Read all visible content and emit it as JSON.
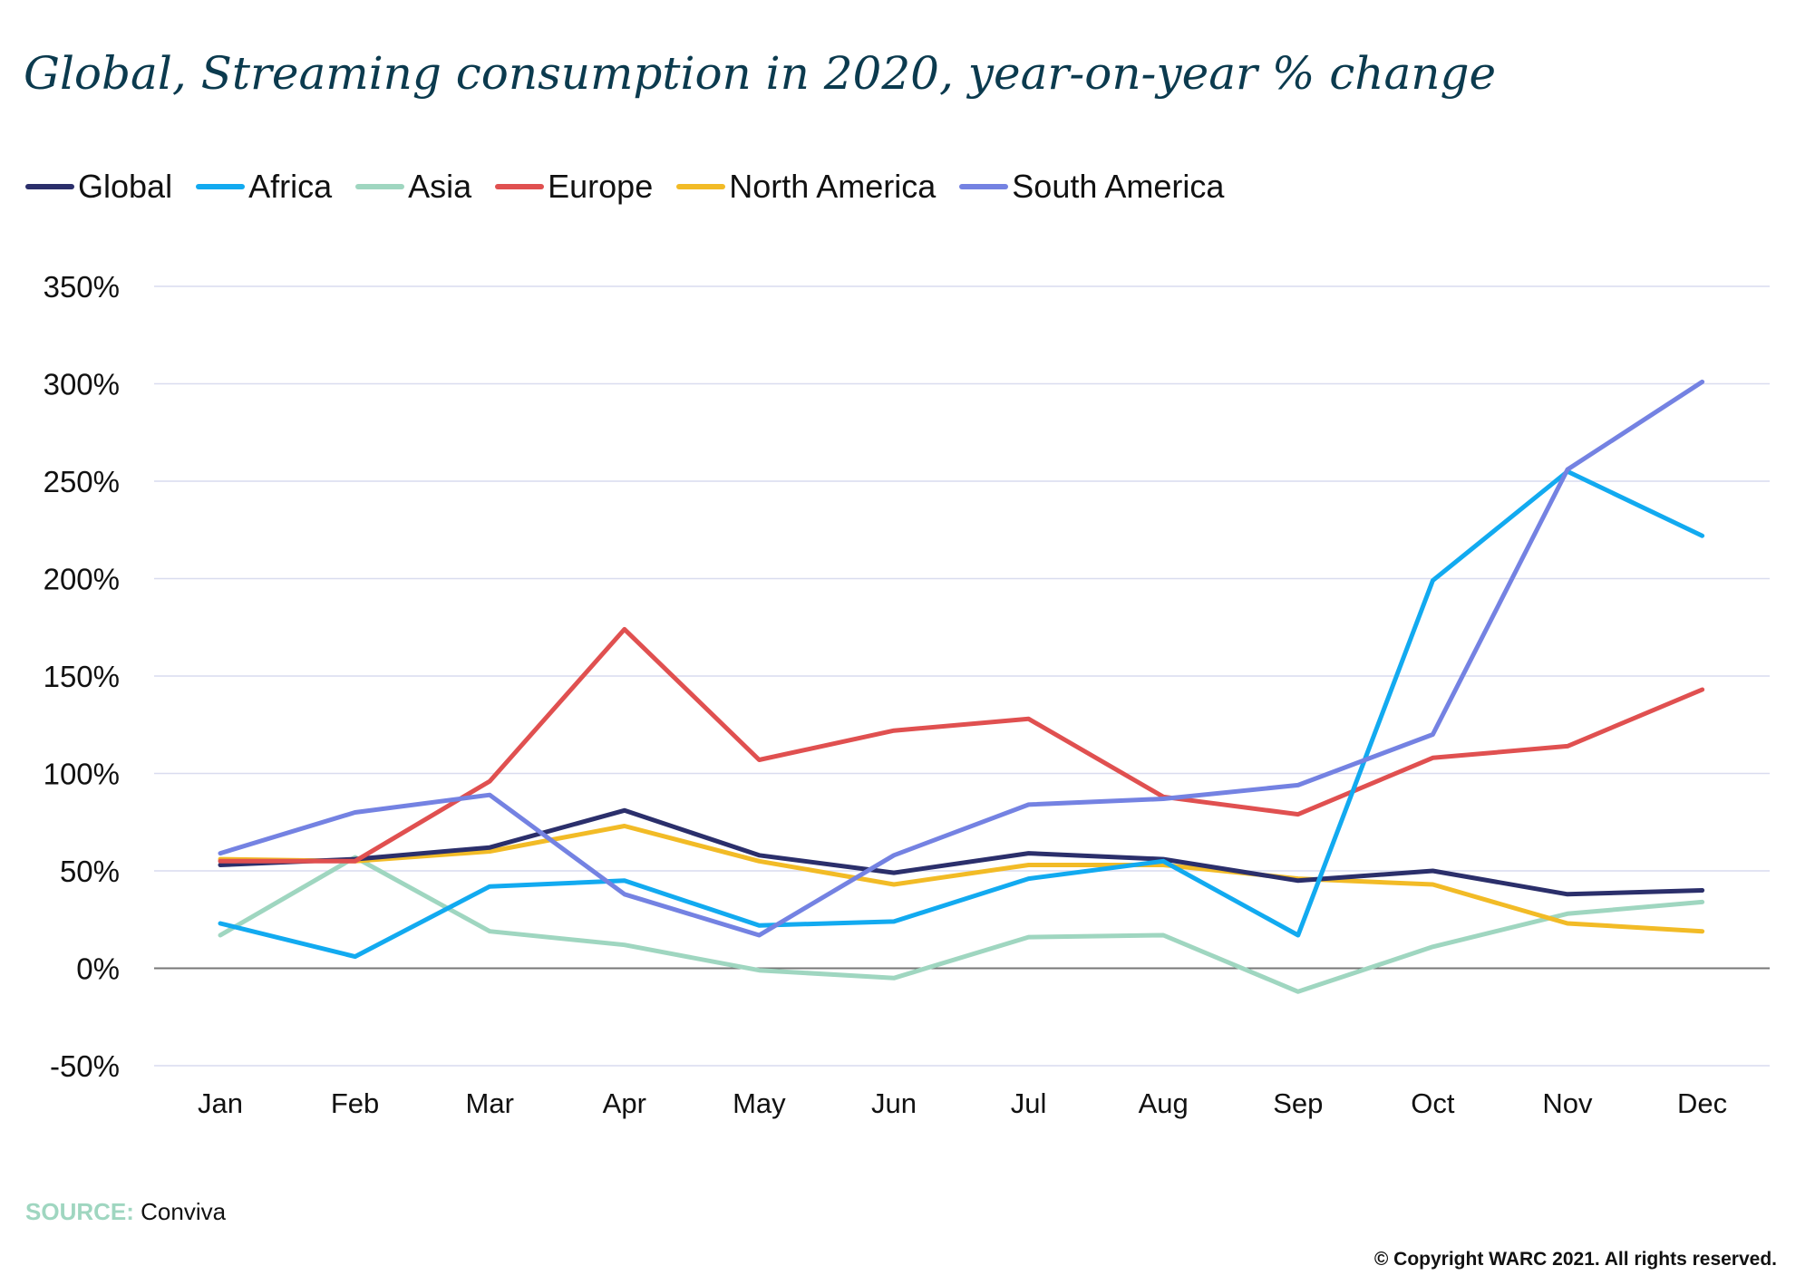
{
  "title": "Global, Streaming consumption in 2020, year-on-year % change",
  "source_label": "SOURCE:",
  "source_value": "Conviva",
  "copyright": "© Copyright WARC 2021. All rights reserved.",
  "chart_data": {
    "type": "line",
    "title": "Global, Streaming consumption in 2020, year-on-year % change",
    "xlabel": "",
    "ylabel": "",
    "ylim": [
      -50,
      350
    ],
    "ytick_values": [
      -50,
      0,
      50,
      100,
      150,
      200,
      250,
      300,
      350
    ],
    "ytick_labels": [
      "-50%",
      "0%",
      "50%",
      "100%",
      "150%",
      "200%",
      "250%",
      "300%",
      "350%"
    ],
    "categories": [
      "Jan",
      "Feb",
      "Mar",
      "Apr",
      "May",
      "Jun",
      "Jul",
      "Aug",
      "Sep",
      "Oct",
      "Nov",
      "Dec"
    ],
    "grid": true,
    "legend_position": "top-left",
    "series": [
      {
        "name": "Global",
        "color": "#2b2f6b",
        "values": [
          53,
          56,
          62,
          81,
          58,
          49,
          59,
          56,
          45,
          50,
          38,
          40
        ]
      },
      {
        "name": "Africa",
        "color": "#12aaf0",
        "values": [
          23,
          6,
          42,
          45,
          22,
          24,
          46,
          55,
          17,
          199,
          255,
          222
        ]
      },
      {
        "name": "Asia",
        "color": "#9fd6c0",
        "values": [
          17,
          57,
          19,
          12,
          -1,
          -5,
          16,
          17,
          -12,
          11,
          28,
          34
        ]
      },
      {
        "name": "Europe",
        "color": "#e05050",
        "values": [
          55,
          55,
          96,
          174,
          107,
          122,
          128,
          88,
          79,
          108,
          114,
          143
        ]
      },
      {
        "name": "North America",
        "color": "#f2bb26",
        "values": [
          56,
          55,
          60,
          73,
          55,
          43,
          53,
          53,
          46,
          43,
          23,
          19
        ]
      },
      {
        "name": "South America",
        "color": "#7482e2",
        "values": [
          59,
          80,
          89,
          38,
          17,
          58,
          84,
          87,
          94,
          120,
          256,
          301
        ]
      }
    ]
  }
}
